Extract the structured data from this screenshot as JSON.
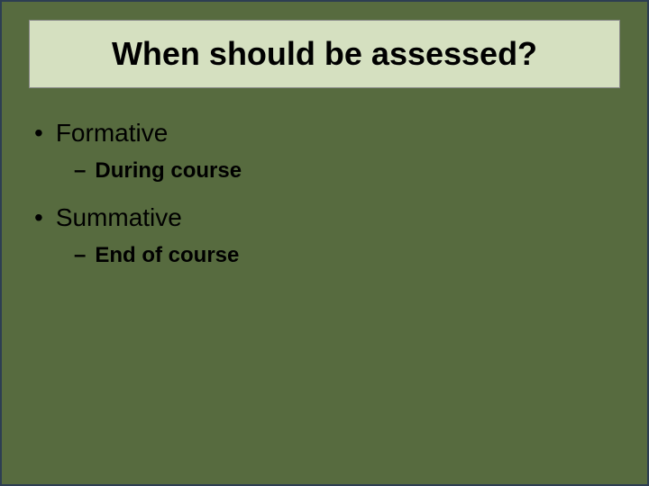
{
  "slide": {
    "title": "When should be assessed?",
    "background_color": "#576b3f",
    "border_color": "#2d3e52",
    "title_box": {
      "background_color": "#d5e0c0",
      "border_color": "#888888",
      "font_size": 36,
      "font_weight": "bold",
      "text_color": "#000000"
    },
    "bullets": [
      {
        "level": 1,
        "marker": "•",
        "text": "Formative",
        "font_size": 28,
        "font_weight": "normal",
        "text_color": "#000000"
      },
      {
        "level": 2,
        "marker": "–",
        "text": "During course",
        "font_size": 24,
        "font_weight": "bold",
        "text_color": "#000000"
      },
      {
        "level": 1,
        "marker": "•",
        "text": "Summative",
        "font_size": 28,
        "font_weight": "normal",
        "text_color": "#000000"
      },
      {
        "level": 2,
        "marker": "–",
        "text": "End of course",
        "font_size": 24,
        "font_weight": "bold",
        "text_color": "#000000"
      }
    ]
  }
}
